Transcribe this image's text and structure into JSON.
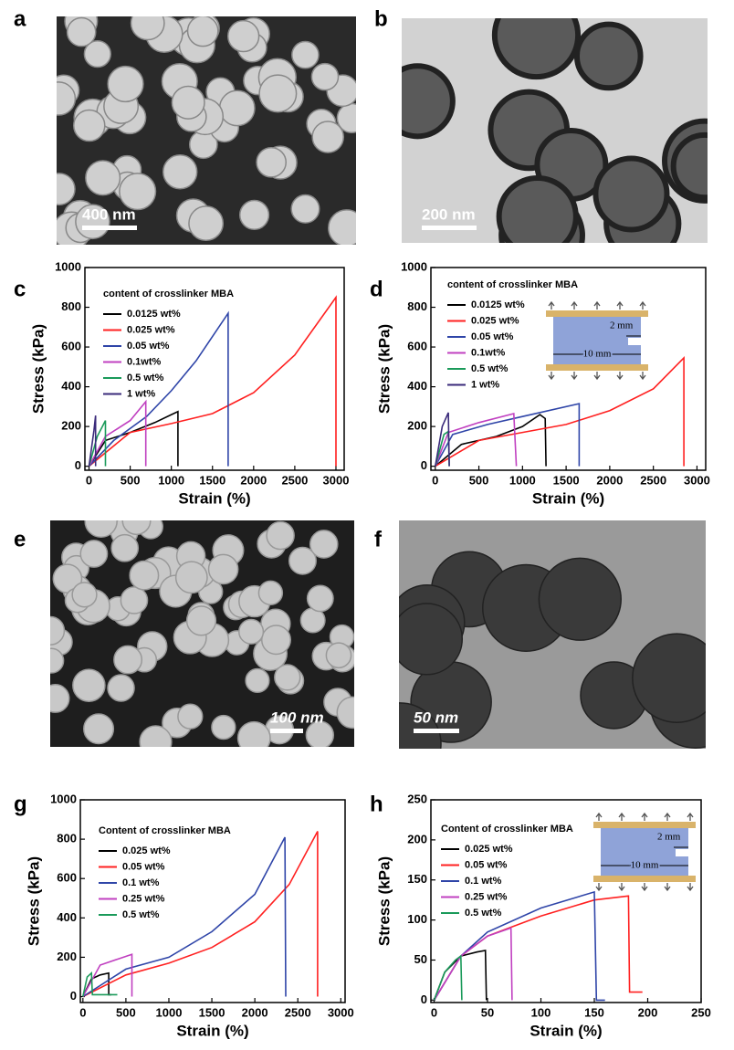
{
  "images": [
    {
      "label": "a",
      "scale_bar": "400 nm"
    },
    {
      "label": "b",
      "scale_bar": "200 nm"
    },
    {
      "label": "e",
      "scale_bar": "100 nm"
    },
    {
      "label": "f",
      "scale_bar": "50 nm"
    }
  ],
  "chart_data": [
    {
      "type": "line",
      "label": "c",
      "x_label": "Strain (%)",
      "y_label": "Stress (kPa)",
      "legend_title": "content of crosslinker MBA",
      "xlim": [
        -50,
        3100
      ],
      "ylim": [
        -20,
        1000
      ],
      "xticks": [
        0,
        500,
        1000,
        1500,
        2000,
        2500,
        3000
      ],
      "yticks": [
        0,
        200,
        400,
        600,
        800,
        1000
      ],
      "series": [
        {
          "name": "0.0125 wt%",
          "color": "#000000",
          "x": [
            0,
            200,
            500,
            800,
            1000,
            1080,
            1080
          ],
          "values": [
            0,
            130,
            170,
            220,
            260,
            275,
            0
          ]
        },
        {
          "name": "0.025 wt%",
          "color": "#ff2020",
          "x": [
            0,
            500,
            1000,
            1500,
            2000,
            2500,
            3000,
            3000
          ],
          "values": [
            0,
            170,
            215,
            265,
            370,
            560,
            850,
            0
          ]
        },
        {
          "name": "0.05 wt%",
          "color": "#2f45a8",
          "x": [
            0,
            300,
            700,
            1000,
            1300,
            1690,
            1690
          ],
          "values": [
            0,
            130,
            250,
            380,
            530,
            770,
            0
          ]
        },
        {
          "name": "0.1wt%",
          "color": "#c040c0",
          "x": [
            0,
            200,
            500,
            690,
            690
          ],
          "values": [
            0,
            150,
            230,
            325,
            0
          ]
        },
        {
          "name": "0.5 wt%",
          "color": "#1a9a5a",
          "x": [
            0,
            100,
            200,
            200
          ],
          "values": [
            0,
            150,
            230,
            0
          ]
        },
        {
          "name": "1 wt%",
          "color": "#3a2a7a",
          "x": [
            0,
            60,
            80,
            80
          ],
          "values": [
            0,
            180,
            255,
            0
          ]
        }
      ]
    },
    {
      "type": "line",
      "label": "d",
      "x_label": "Strain (%)",
      "y_label": "Stress (kPa)",
      "legend_title": "content of crosslinker MBA",
      "inset": {
        "gap_label": "2 mm",
        "length_label": "10 mm"
      },
      "xlim": [
        -50,
        3100
      ],
      "ylim": [
        -20,
        1000
      ],
      "xticks": [
        0,
        500,
        1000,
        1500,
        2000,
        2500,
        3000
      ],
      "yticks": [
        0,
        200,
        400,
        600,
        800,
        1000
      ],
      "series": [
        {
          "name": "0.0125 wt%",
          "color": "#000000",
          "x": [
            0,
            300,
            700,
            1000,
            1200,
            1260,
            1270
          ],
          "values": [
            0,
            110,
            150,
            200,
            260,
            240,
            0
          ]
        },
        {
          "name": "0.025 wt%",
          "color": "#ff2020",
          "x": [
            0,
            500,
            1000,
            1500,
            2000,
            2500,
            2850,
            2850
          ],
          "values": [
            0,
            130,
            170,
            210,
            280,
            390,
            545,
            0
          ]
        },
        {
          "name": "0.05 wt%",
          "color": "#2f45a8",
          "x": [
            0,
            200,
            600,
            1000,
            1650,
            1650
          ],
          "values": [
            0,
            160,
            210,
            250,
            315,
            0
          ]
        },
        {
          "name": "0.1wt%",
          "color": "#c040c0",
          "x": [
            0,
            150,
            500,
            900,
            930
          ],
          "values": [
            0,
            170,
            220,
            265,
            0
          ]
        },
        {
          "name": "0.5 wt%",
          "color": "#1a9a5a",
          "x": [
            0,
            100,
            150,
            160
          ],
          "values": [
            0,
            160,
            175,
            0
          ]
        },
        {
          "name": "1 wt%",
          "color": "#3a2a7a",
          "x": [
            0,
            80,
            150,
            160
          ],
          "values": [
            0,
            200,
            270,
            0
          ]
        }
      ]
    },
    {
      "type": "line",
      "label": "g",
      "x_label": "Strain (%)",
      "y_label": "Stress (kPa)",
      "legend_title": "Content of crosslinker MBA",
      "xlim": [
        -30,
        3050
      ],
      "ylim": [
        -30,
        1000
      ],
      "xticks": [
        0,
        500,
        1000,
        1500,
        2000,
        2500,
        3000
      ],
      "yticks": [
        0,
        200,
        400,
        600,
        800,
        1000
      ],
      "series": [
        {
          "name": "0.025 wt%",
          "color": "#000000",
          "x": [
            0,
            100,
            200,
            300,
            300,
            330
          ],
          "values": [
            0,
            90,
            110,
            120,
            10,
            10
          ]
        },
        {
          "name": "0.05 wt%",
          "color": "#ff2020",
          "x": [
            0,
            500,
            1000,
            1500,
            2000,
            2400,
            2730,
            2730
          ],
          "values": [
            0,
            110,
            170,
            250,
            380,
            570,
            840,
            0
          ]
        },
        {
          "name": "0.1 wt%",
          "color": "#2f45a8",
          "x": [
            0,
            500,
            1000,
            1500,
            2000,
            2350,
            2360
          ],
          "values": [
            0,
            140,
            200,
            330,
            520,
            810,
            0
          ]
        },
        {
          "name": "0.25 wt%",
          "color": "#c040c0",
          "x": [
            0,
            200,
            400,
            570,
            570
          ],
          "values": [
            0,
            160,
            190,
            215,
            0
          ]
        },
        {
          "name": "0.5 wt%",
          "color": "#1a9a5a",
          "x": [
            0,
            50,
            100,
            110,
            400
          ],
          "values": [
            0,
            100,
            120,
            10,
            10
          ]
        }
      ]
    },
    {
      "type": "line",
      "label": "h",
      "x_label": "Strain (%)",
      "y_label": "Stress (kPa)",
      "legend_title": "Content of crosslinker MBA",
      "inset": {
        "gap_label": "2 mm",
        "length_label": "10 mm"
      },
      "xlim": [
        -3,
        250
      ],
      "ylim": [
        -3,
        250
      ],
      "xticks": [
        0,
        50,
        100,
        150,
        200,
        250
      ],
      "yticks": [
        0,
        50,
        100,
        150,
        200,
        250
      ],
      "series": [
        {
          "name": "0.025 wt%",
          "color": "#000000",
          "x": [
            0,
            10,
            25,
            40,
            48,
            49
          ],
          "values": [
            0,
            35,
            55,
            60,
            62,
            0
          ]
        },
        {
          "name": "0.05 wt%",
          "color": "#ff2020",
          "x": [
            0,
            25,
            50,
            100,
            150,
            182,
            183,
            195
          ],
          "values": [
            0,
            55,
            80,
            105,
            125,
            130,
            10,
            10
          ]
        },
        {
          "name": "0.1 wt%",
          "color": "#2f45a8",
          "x": [
            0,
            25,
            50,
            100,
            150,
            152,
            160
          ],
          "values": [
            0,
            55,
            85,
            115,
            135,
            0,
            0
          ]
        },
        {
          "name": "0.25 wt%",
          "color": "#c040c0",
          "x": [
            0,
            25,
            50,
            72,
            73
          ],
          "values": [
            0,
            55,
            80,
            90,
            0
          ]
        },
        {
          "name": "0.5 wt%",
          "color": "#1a9a5a",
          "x": [
            0,
            10,
            20,
            25,
            26
          ],
          "values": [
            0,
            35,
            50,
            55,
            0
          ]
        }
      ]
    }
  ]
}
